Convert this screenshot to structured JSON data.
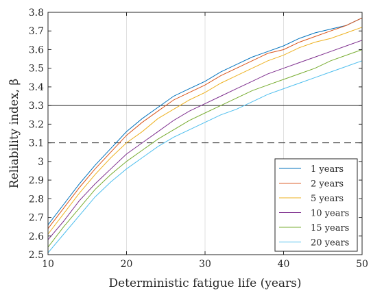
{
  "chart_data": {
    "type": "line",
    "title": "",
    "xlabel": "Deterministic fatigue life (years)",
    "ylabel": "Reliability index, β",
    "xlim": [
      10,
      50
    ],
    "ylim": [
      2.5,
      3.8
    ],
    "xticks": [
      10,
      20,
      30,
      40,
      50
    ],
    "yticks": [
      2.5,
      2.6,
      2.7,
      2.8,
      2.9,
      3,
      3.1,
      3.2,
      3.3,
      3.4,
      3.5,
      3.6,
      3.7,
      3.8
    ],
    "grid": true,
    "legend_position": "bottom-right",
    "x": [
      10,
      12,
      14,
      16,
      18,
      20,
      22,
      24,
      26,
      28,
      30,
      32,
      34,
      36,
      38,
      40,
      42,
      44,
      46,
      48,
      50
    ],
    "series": [
      {
        "name": "1 years",
        "color": "#0072BD",
        "values": [
          2.66,
          2.77,
          2.88,
          2.98,
          3.07,
          3.16,
          3.23,
          3.29,
          3.35,
          3.39,
          3.43,
          3.48,
          3.52,
          3.56,
          3.59,
          3.62,
          3.66,
          3.69,
          3.71,
          3.73,
          3.77
        ]
      },
      {
        "name": "2 years",
        "color": "#D95319",
        "values": [
          2.64,
          2.75,
          2.86,
          2.96,
          3.05,
          3.14,
          3.21,
          3.27,
          3.33,
          3.37,
          3.41,
          3.46,
          3.5,
          3.54,
          3.58,
          3.6,
          3.64,
          3.67,
          3.7,
          3.73,
          3.77
        ]
      },
      {
        "name": "5 years",
        "color": "#EDB120",
        "values": [
          2.61,
          2.72,
          2.83,
          2.93,
          3.02,
          3.1,
          3.16,
          3.23,
          3.28,
          3.33,
          3.37,
          3.42,
          3.46,
          3.5,
          3.54,
          3.57,
          3.61,
          3.64,
          3.66,
          3.69,
          3.72
        ]
      },
      {
        "name": "10 years",
        "color": "#7E2F8E",
        "values": [
          2.58,
          2.68,
          2.79,
          2.88,
          2.96,
          3.04,
          3.1,
          3.16,
          3.22,
          3.27,
          3.31,
          3.35,
          3.39,
          3.43,
          3.47,
          3.5,
          3.53,
          3.56,
          3.59,
          3.62,
          3.65
        ]
      },
      {
        "name": "15 years",
        "color": "#77AC30",
        "values": [
          2.54,
          2.65,
          2.75,
          2.85,
          2.93,
          3.0,
          3.06,
          3.12,
          3.17,
          3.22,
          3.26,
          3.3,
          3.34,
          3.38,
          3.41,
          3.44,
          3.47,
          3.5,
          3.54,
          3.57,
          3.6
        ]
      },
      {
        "name": "20 years",
        "color": "#4DBEEE",
        "values": [
          2.51,
          2.61,
          2.71,
          2.81,
          2.89,
          2.96,
          3.02,
          3.08,
          3.13,
          3.17,
          3.21,
          3.25,
          3.28,
          3.32,
          3.36,
          3.39,
          3.42,
          3.45,
          3.48,
          3.51,
          3.54
        ]
      }
    ],
    "reference_lines": [
      {
        "y": 3.3,
        "style": "solid",
        "color": "#262626"
      },
      {
        "y": 3.1,
        "style": "dashed",
        "color": "#262626"
      }
    ]
  }
}
